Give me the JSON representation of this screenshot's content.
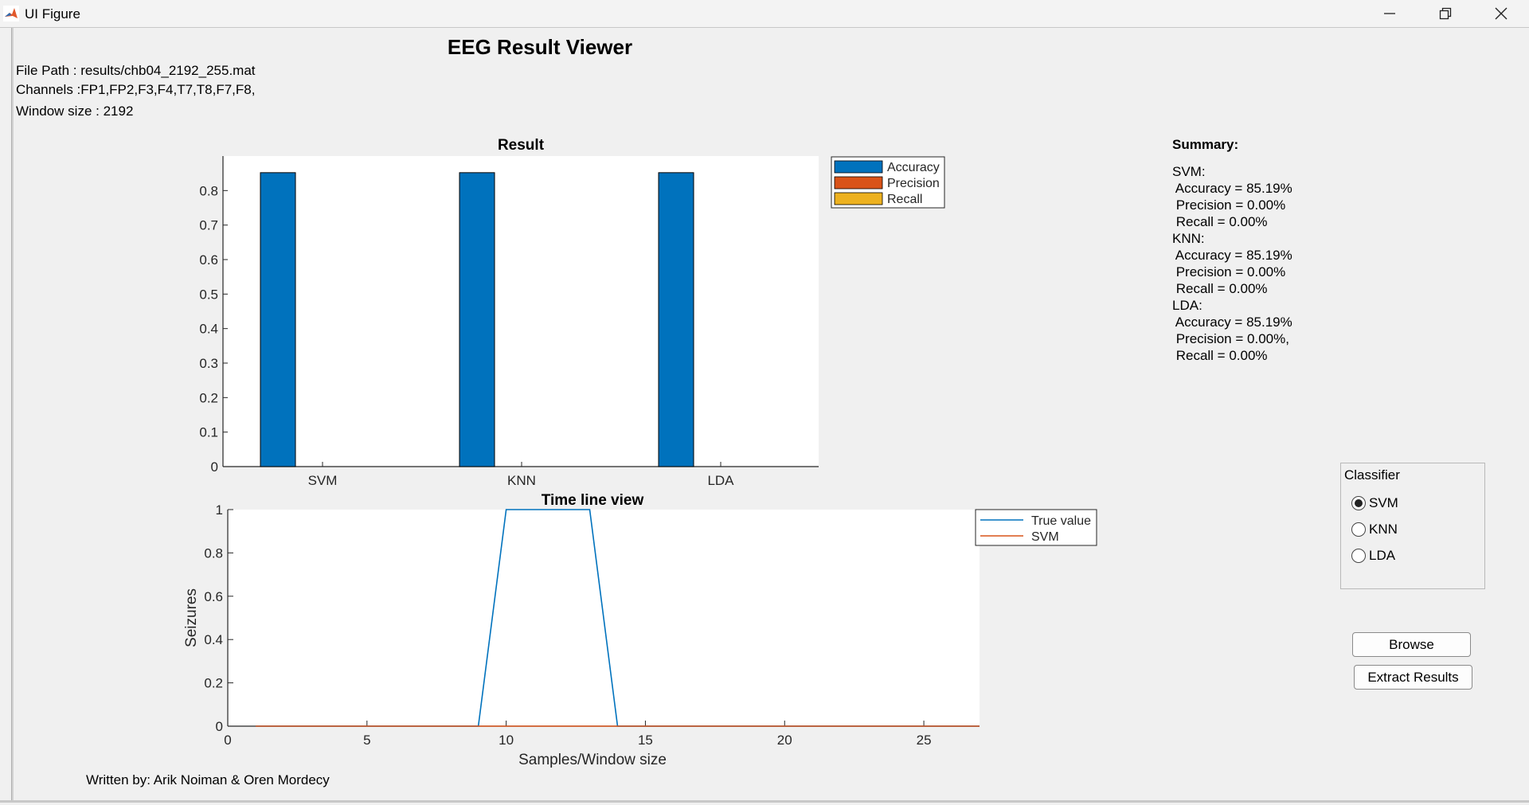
{
  "window": {
    "title": "UI Figure"
  },
  "header": {
    "title": "EEG Result Viewer"
  },
  "info": {
    "file_path": "File Path : results/chb04_2192_255.mat",
    "channels": "Channels :FP1,FP2,F3,F4,T7,T8,F7,F8,",
    "window_size": "Window size : 2192"
  },
  "summary": {
    "title": "Summary:",
    "lines": [
      "SVM:",
      " Accuracy = 85.19%",
      " Precision = 0.00%",
      " Recall = 0.00%",
      "KNN:",
      " Accuracy = 85.19%",
      " Precision = 0.00%",
      " Recall = 0.00%",
      "LDA:",
      " Accuracy = 85.19%",
      " Precision = 0.00%,",
      " Recall = 0.00%"
    ]
  },
  "classifier_panel": {
    "title": "Classifier",
    "options": [
      "SVM",
      "KNN",
      "LDA"
    ],
    "selected": "SVM"
  },
  "buttons": {
    "browse": "Browse",
    "extract": "Extract  Results"
  },
  "footer": {
    "credit": "Written by: Arik Noiman & Oren Mordecy"
  },
  "colors": {
    "accuracy": "#0072BD",
    "precision": "#D95319",
    "recall": "#EDB120",
    "true_value": "#0072BD",
    "svm_line": "#D95319"
  },
  "chart_data": [
    {
      "type": "bar",
      "title": "Result",
      "categories": [
        "SVM",
        "KNN",
        "LDA"
      ],
      "series": [
        {
          "name": "Accuracy",
          "values": [
            0.8519,
            0.8519,
            0.8519
          ]
        },
        {
          "name": "Precision",
          "values": [
            0,
            0,
            0
          ]
        },
        {
          "name": "Recall",
          "values": [
            0,
            0,
            0
          ]
        }
      ],
      "yticks": [
        "0",
        "0.1",
        "0.2",
        "0.3",
        "0.4",
        "0.5",
        "0.6",
        "0.7",
        "0.8"
      ],
      "ylim": [
        0,
        0.9
      ],
      "legend_placement": "outside-right"
    },
    {
      "type": "line",
      "title": "Time line view",
      "xlabel": "Samples/Window size",
      "ylabel": "Seizures",
      "xlim": [
        0,
        27
      ],
      "ylim": [
        0,
        1
      ],
      "xticks": [
        "0",
        "5",
        "10",
        "15",
        "20",
        "25"
      ],
      "yticks": [
        "0",
        "0.2",
        "0.4",
        "0.6",
        "0.8",
        "1"
      ],
      "series": [
        {
          "name": "True value",
          "x": [
            1,
            9,
            10,
            13,
            14,
            27
          ],
          "y": [
            0,
            0,
            1,
            1,
            0,
            0
          ]
        },
        {
          "name": "SVM",
          "x": [
            1,
            27
          ],
          "y": [
            0,
            0
          ]
        }
      ],
      "legend_placement": "outside-right"
    }
  ]
}
